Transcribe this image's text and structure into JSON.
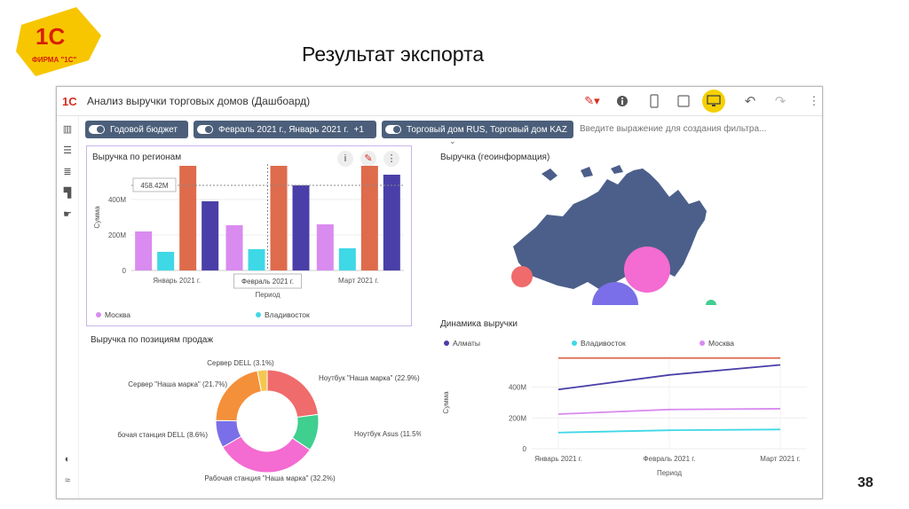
{
  "slide": {
    "title": "Результат экспорта",
    "page_number": "38",
    "logo_caption": "ФИРМА \"1С\"",
    "logo_mark": "1С"
  },
  "app": {
    "logo": "1С",
    "title": "Анализ выручки торговых домов (Дашбоард)",
    "toolbar_icons": [
      "pen-icon",
      "info-icon",
      "phone-icon",
      "tablet-icon",
      "desktop-icon",
      "undo-icon",
      "redo-icon",
      "more-icon"
    ]
  },
  "filters": {
    "chips": [
      {
        "label": "Годовой бюджет"
      },
      {
        "label": "Февраль 2021 г., Январь 2021 г.",
        "badge": "+1"
      },
      {
        "label": "Торговый дом RUS, Торговый дом KAZ"
      }
    ],
    "input_placeholder": "Введите выражение для создания фильтра..."
  },
  "widgets": {
    "regions": {
      "title": "Выручка по регионам",
      "tooltip_value": "458.42M",
      "tooltip_period": "Февраль 2021 г."
    },
    "geo": {
      "title": "Выручка (геоинформация)"
    },
    "positions": {
      "title": "Выручка по позициям продаж"
    },
    "dynamics": {
      "title": "Динамика выручки"
    }
  },
  "chart_data": [
    {
      "type": "bar",
      "title": "Выручка по регионам",
      "xlabel": "Период",
      "ylabel": "Сумма",
      "ylim": [
        0,
        600
      ],
      "y_ticks": [
        "0",
        "200M",
        "400M"
      ],
      "categories": [
        "Январь 2021 г.",
        "Февраль 2021 г.",
        "Март 2021 г."
      ],
      "series": [
        {
          "name": "Москва",
          "color": "#d98bef",
          "values": [
            220,
            255,
            260
          ]
        },
        {
          "name": "Владивосток",
          "color": "#3fd8e6",
          "values": [
            105,
            120,
            125
          ]
        },
        {
          "name": "",
          "color": "#de6b4c",
          "values": [
            590,
            590,
            590
          ]
        },
        {
          "name": "",
          "color": "#4a3fa8",
          "values": [
            390,
            480,
            540
          ]
        }
      ],
      "legend_visible": [
        "Москва",
        "Владивосток"
      ],
      "legend_position": "bottom"
    },
    {
      "type": "pie",
      "title": "Выручка по позициям продаж",
      "slices": [
        {
          "label": "Сервер DELL (3.1%)",
          "value": 3.1,
          "color": "#f4c850"
        },
        {
          "label": "Ноутбук \"Наша марка\" (22.9%)",
          "value": 22.9,
          "color": "#f06b6b"
        },
        {
          "label": "Ноутбук Asus (11.5%)",
          "value": 11.5,
          "color": "#3fcf8e"
        },
        {
          "label": "Рабочая станция \"Наша марка\" (32.2%)",
          "value": 32.2,
          "color": "#f46bd1"
        },
        {
          "label": "бочая станция DELL (8.6%)",
          "value": 8.6,
          "color": "#7a6fe8"
        },
        {
          "label": "Сервер \"Наша марка\" (21.7%)",
          "value": 21.7,
          "color": "#f4903a"
        }
      ]
    },
    {
      "type": "line",
      "title": "Динамика выручки",
      "xlabel": "Период",
      "ylabel": "Сумма",
      "ylim": [
        0,
        600
      ],
      "y_ticks": [
        "0",
        "200M",
        "400M"
      ],
      "categories": [
        "Январь 2021 г.",
        "Февраль 2021 г.",
        "Март 2021 г."
      ],
      "series": [
        {
          "name": "Алматы",
          "color": "#4a3fa8",
          "values": [
            385,
            480,
            545
          ]
        },
        {
          "name": "Владивосток",
          "color": "#3fd8e6",
          "values": [
            105,
            120,
            125
          ]
        },
        {
          "name": "Москва",
          "color": "#d98bef",
          "values": [
            225,
            255,
            260
          ]
        },
        {
          "name": "",
          "color": "#de6b4c",
          "values": [
            590,
            590,
            590
          ]
        }
      ],
      "legend_position": "top"
    },
    {
      "type": "map",
      "title": "Выручка (геоинформация)",
      "map_color": "#4c5f8a",
      "bubbles": [
        {
          "color": "#f46bd1",
          "value": 100
        },
        {
          "color": "#7a6fe8",
          "value": 70
        },
        {
          "color": "#f06b6b",
          "value": 20
        },
        {
          "color": "#3fcf8e",
          "value": 5
        }
      ]
    }
  ]
}
